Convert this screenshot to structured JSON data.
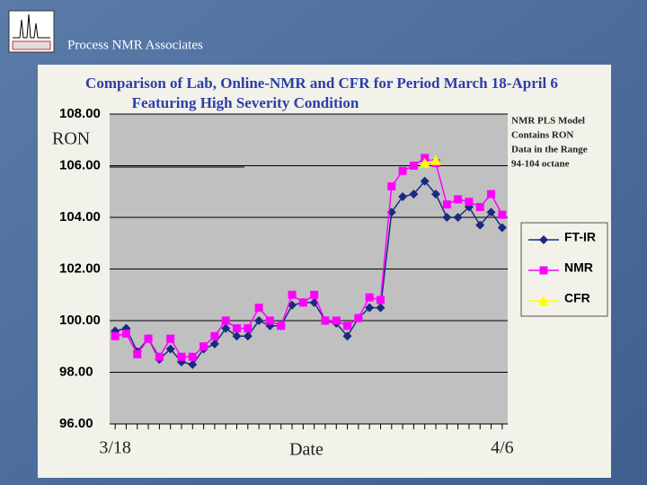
{
  "header": "Process NMR Associates",
  "chart_data": {
    "type": "line",
    "title": "Comparison of Lab, Online-NMR and CFR for Period March 18-April 6",
    "subtitle": "Featuring High Severity Condition",
    "y_label": "RON",
    "x_label": "Date",
    "annotation": [
      "NMR PLS Model",
      "Contains RON",
      "Data in the Range",
      "94-104 octane"
    ],
    "categories": [
      "3/18",
      null,
      null,
      null,
      null,
      null,
      null,
      null,
      null,
      null,
      null,
      null,
      null,
      null,
      null,
      null,
      null,
      null,
      null,
      null,
      null,
      null,
      null,
      null,
      null,
      null,
      null,
      null,
      null,
      null,
      null,
      null,
      null,
      null,
      null,
      "4/6"
    ],
    "ylim": [
      96,
      108
    ],
    "yticks": [
      {
        "value": 96,
        "label": "96.00"
      },
      {
        "value": 98,
        "label": "98.00"
      },
      {
        "value": 100,
        "label": "100.00"
      },
      {
        "value": 102,
        "label": "102.00"
      },
      {
        "value": 104,
        "label": "104.00"
      },
      {
        "value": 106,
        "label": "106.00"
      },
      {
        "value": 108,
        "label": "108.00"
      }
    ],
    "grid": true,
    "legend": "right",
    "series": [
      {
        "name": "FT-IR",
        "color": "#1a2a80",
        "marker": "diamond",
        "values": [
          99.6,
          99.7,
          98.8,
          99.3,
          98.5,
          98.9,
          98.4,
          98.3,
          98.9,
          99.1,
          99.7,
          99.4,
          99.4,
          100.0,
          99.8,
          99.8,
          100.6,
          100.7,
          100.7,
          100.0,
          99.9,
          99.4,
          100.1,
          100.5,
          100.5,
          104.2,
          104.8,
          104.9,
          105.4,
          104.9,
          104.0,
          104.0,
          104.4,
          103.7,
          104.2,
          103.6
        ]
      },
      {
        "name": "NMR",
        "color": "#ff00ff",
        "marker": "square",
        "values": [
          99.4,
          99.5,
          98.7,
          99.3,
          98.6,
          99.3,
          98.6,
          98.6,
          99.0,
          99.4,
          100.0,
          99.7,
          99.7,
          100.5,
          100.0,
          99.8,
          101.0,
          100.7,
          101.0,
          100.0,
          100.0,
          99.8,
          100.1,
          100.9,
          100.8,
          105.2,
          105.8,
          106.0,
          106.3,
          106.1,
          104.5,
          104.7,
          104.6,
          104.4,
          104.9,
          104.1
        ]
      },
      {
        "name": "CFR",
        "color": "#ffff00",
        "marker": "triangle",
        "values": [
          null,
          null,
          null,
          null,
          null,
          null,
          null,
          null,
          null,
          null,
          null,
          null,
          null,
          null,
          null,
          null,
          null,
          null,
          null,
          null,
          null,
          null,
          null,
          null,
          null,
          null,
          null,
          null,
          106.1,
          106.2,
          null,
          null,
          null,
          null,
          null,
          null
        ]
      }
    ]
  }
}
